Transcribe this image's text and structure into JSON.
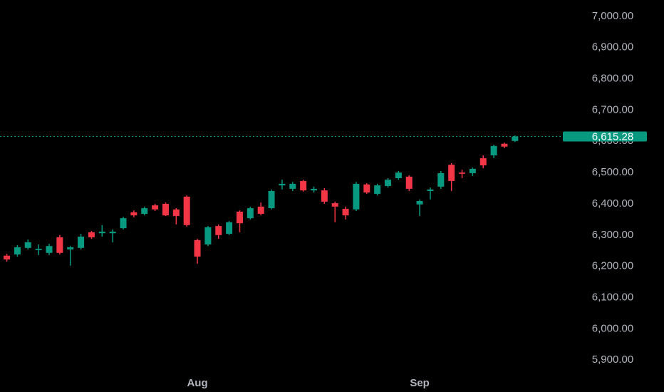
{
  "chart_data": {
    "type": "candlestick",
    "categories": [
      null,
      null,
      null,
      null,
      null,
      null,
      null,
      null,
      null,
      null,
      null,
      null,
      null,
      null,
      null,
      null,
      null,
      null,
      null,
      "Aug",
      null,
      null,
      null,
      null,
      null,
      null,
      null,
      null,
      null,
      null,
      null,
      null,
      null,
      null,
      null,
      null,
      null,
      null,
      null,
      null,
      "Sep",
      null,
      null,
      null,
      null,
      null,
      null,
      null,
      null,
      null
    ],
    "open": [
      6254,
      6234,
      6238,
      6259,
      6252,
      6243,
      6293,
      6254,
      6259,
      6309,
      6306,
      6306,
      6322,
      6373,
      6368,
      6395,
      6400,
      6382,
      6423,
      6284,
      6270,
      6329,
      6304,
      6375,
      6354,
      6391,
      6386,
      6459,
      6448,
      6473,
      6443,
      6443,
      6402,
      6384,
      6382,
      6462,
      6432,
      6457,
      6482,
      6487,
      6398,
      6441,
      6455,
      6525,
      6500,
      6498,
      6546,
      6555,
      6592,
      6601
    ],
    "high": [
      6265,
      6240,
      6268,
      6286,
      6270,
      6272,
      6300,
      6265,
      6304,
      6313,
      6332,
      6318,
      6359,
      6379,
      6391,
      6400,
      6404,
      6386,
      6427,
      6288,
      6329,
      6334,
      6345,
      6379,
      6391,
      6404,
      6446,
      6477,
      6470,
      6477,
      6455,
      6450,
      6407,
      6391,
      6470,
      6466,
      6464,
      6482,
      6505,
      6491,
      6414,
      6452,
      6505,
      6530,
      6509,
      6516,
      6555,
      6589,
      6596,
      6619
    ],
    "low": [
      6227,
      6215,
      6231,
      6254,
      6236,
      6236,
      6238,
      6202,
      6254,
      6288,
      6295,
      6277,
      6318,
      6357,
      6363,
      6377,
      6361,
      6334,
      6327,
      6208,
      6265,
      6288,
      6300,
      6309,
      6350,
      6363,
      6382,
      6446,
      6441,
      6439,
      6436,
      6400,
      6341,
      6350,
      6377,
      6432,
      6427,
      6452,
      6477,
      6441,
      6361,
      6414,
      6448,
      6441,
      6482,
      6489,
      6514,
      6546,
      6578,
      6598
    ],
    "close": [
      6231,
      6222,
      6261,
      6277,
      6256,
      6265,
      6243,
      6261,
      6295,
      6293,
      6311,
      6311,
      6354,
      6363,
      6386,
      6382,
      6363,
      6361,
      6332,
      6231,
      6325,
      6300,
      6341,
      6338,
      6386,
      6368,
      6441,
      6464,
      6464,
      6443,
      6448,
      6407,
      6391,
      6363,
      6464,
      6436,
      6459,
      6477,
      6500,
      6448,
      6409,
      6446,
      6498,
      6473,
      6496,
      6512,
      6523,
      6585,
      6583,
      6615.28
    ],
    "up_color": "#089981",
    "down_color": "#f23645",
    "ylim": [
      5855,
      7052
    ],
    "yticks": [
      {
        "value": 5900,
        "label": "5,900.00"
      },
      {
        "value": 6000,
        "label": "6,000.00"
      },
      {
        "value": 6100,
        "label": "6,100.00"
      },
      {
        "value": 6200,
        "label": "6,200.00"
      },
      {
        "value": 6300,
        "label": "6,300.00"
      },
      {
        "value": 6400,
        "label": "6,400.00"
      },
      {
        "value": 6500,
        "label": "6,500.00"
      },
      {
        "value": 6600,
        "label": "6,600.00"
      },
      {
        "value": 6700,
        "label": "6,700.00"
      },
      {
        "value": 6800,
        "label": "6,800.00"
      },
      {
        "value": 6900,
        "label": "6,900.00"
      },
      {
        "value": 7000,
        "label": "7,000.00"
      }
    ],
    "last_price": {
      "value": 6615.28,
      "label": "6,615.28"
    },
    "grid": false
  }
}
